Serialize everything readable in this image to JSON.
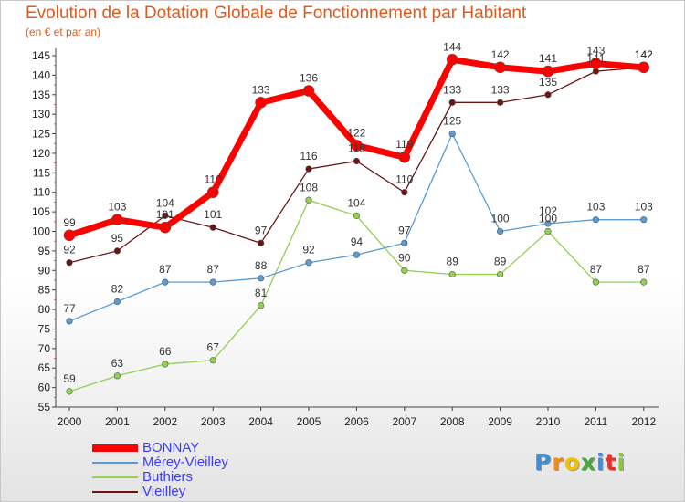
{
  "chart_data": {
    "type": "line",
    "title": "Evolution de la Dotation Globale de Fonctionnement par Habitant",
    "subtitle": "(en € et par an)",
    "x": [
      "2000",
      "2001",
      "2002",
      "2003",
      "2004",
      "2005",
      "2006",
      "2007",
      "2008",
      "2009",
      "2010",
      "2011",
      "2012"
    ],
    "ylim": [
      55,
      145
    ],
    "yticks": [
      55,
      60,
      65,
      70,
      75,
      80,
      85,
      90,
      95,
      100,
      105,
      110,
      115,
      120,
      125,
      130,
      135,
      140,
      145
    ],
    "grid": false,
    "legend_position": "bottom-left",
    "series": [
      {
        "name": "BONNAY",
        "color": "#ff0000",
        "values": [
          99,
          103,
          101,
          110,
          133,
          136,
          122,
          119,
          144,
          142,
          141,
          143,
          142
        ]
      },
      {
        "name": "Mérey-Vieilley",
        "color": "#5b9bd5",
        "values": [
          77,
          82,
          87,
          87,
          88,
          92,
          94,
          97,
          125,
          100,
          102,
          103,
          103
        ]
      },
      {
        "name": "Buthiers",
        "color": "#92d050",
        "values": [
          59,
          63,
          66,
          67,
          81,
          108,
          104,
          90,
          89,
          89,
          100,
          87,
          87
        ]
      },
      {
        "name": "Vieilley",
        "color": "#6b1414",
        "values": [
          92,
          95,
          104,
          101,
          97,
          116,
          118,
          110,
          133,
          133,
          135,
          141,
          142
        ]
      }
    ]
  },
  "logo": {
    "text": "Proxiti",
    "letters": [
      {
        "ch": "P",
        "color": "#3a8fd8"
      },
      {
        "ch": "r",
        "color": "#f08a1a"
      },
      {
        "ch": "o",
        "color": "#f2c200"
      },
      {
        "ch": "x",
        "color": "#4aa53a"
      },
      {
        "ch": "i",
        "color": "#3a8fd8"
      },
      {
        "ch": "t",
        "color": "#e8312c"
      },
      {
        "ch": "i",
        "color": "#8cc43e"
      }
    ]
  }
}
